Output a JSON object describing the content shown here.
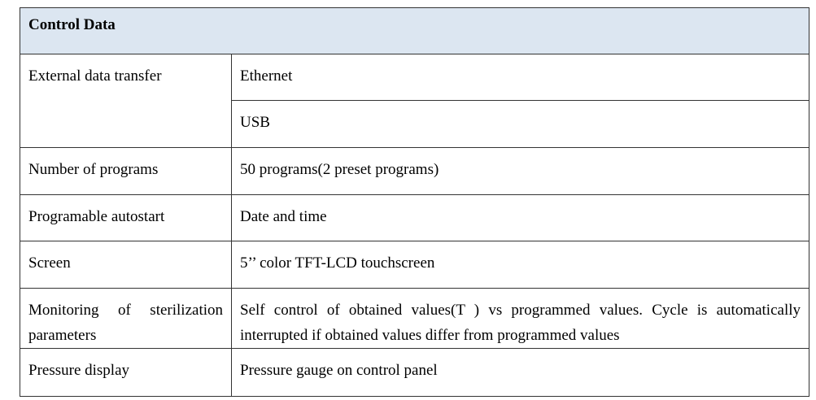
{
  "table": {
    "title": "Control Data",
    "rows": [
      {
        "label": "External data transfer",
        "values": [
          "Ethernet",
          "USB"
        ]
      },
      {
        "label": "Number of programs",
        "values": [
          "50 programs(2 preset programs)"
        ]
      },
      {
        "label": "Programable autostart",
        "values": [
          "Date and time"
        ]
      },
      {
        "label": "Screen",
        "values": [
          "5’’ color TFT-LCD touchscreen"
        ]
      },
      {
        "label": "Monitoring of sterilization parameters",
        "values": [
          "Self control of obtained values(T ) vs programmed values. Cycle is automatically interrupted if obtained values differ from programmed values"
        ]
      },
      {
        "label": "Pressure display",
        "values": [
          "Pressure gauge on control panel"
        ]
      }
    ]
  }
}
